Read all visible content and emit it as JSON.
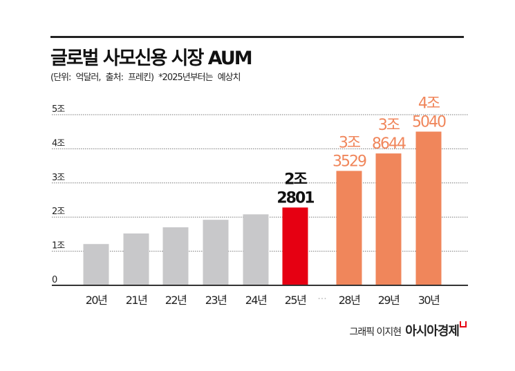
{
  "title": "글로벌 사모신용 시장 AUM",
  "subtitle": "(단위: 억달러, 출처: 프레킨)   *2025년부터는 예상치",
  "credit": {
    "author": "그래픽 이지현",
    "brand": "아시아경제"
  },
  "colors": {
    "actual": "#c8c8ca",
    "current": "#e60012",
    "forecast": "#f0865b"
  },
  "chart_data": {
    "type": "bar",
    "title": "글로벌 사모신용 시장 AUM",
    "unit": "억달러",
    "categories": [
      "20년",
      "21년",
      "22년",
      "23년",
      "24년",
      "25년",
      "28년",
      "29년",
      "30년"
    ],
    "values": [
      12100,
      15200,
      17000,
      19200,
      20800,
      22801,
      33529,
      38644,
      45040
    ],
    "bar_labels": [
      null,
      null,
      null,
      null,
      null,
      [
        "2조",
        "2801"
      ],
      [
        "3조",
        "3529"
      ],
      [
        "3조",
        "8644"
      ],
      [
        "4조",
        "5040"
      ]
    ],
    "bar_kind": [
      "actual",
      "actual",
      "actual",
      "actual",
      "actual",
      "current",
      "forecast",
      "forecast",
      "forecast"
    ],
    "ylim": [
      0,
      50000
    ],
    "yticks": [
      0,
      10000,
      20000,
      30000,
      40000,
      50000
    ],
    "ytick_labels": [
      "0",
      "1조",
      "2조",
      "3조",
      "4조",
      "5조"
    ],
    "axis_break_label": "···",
    "grid": true
  }
}
